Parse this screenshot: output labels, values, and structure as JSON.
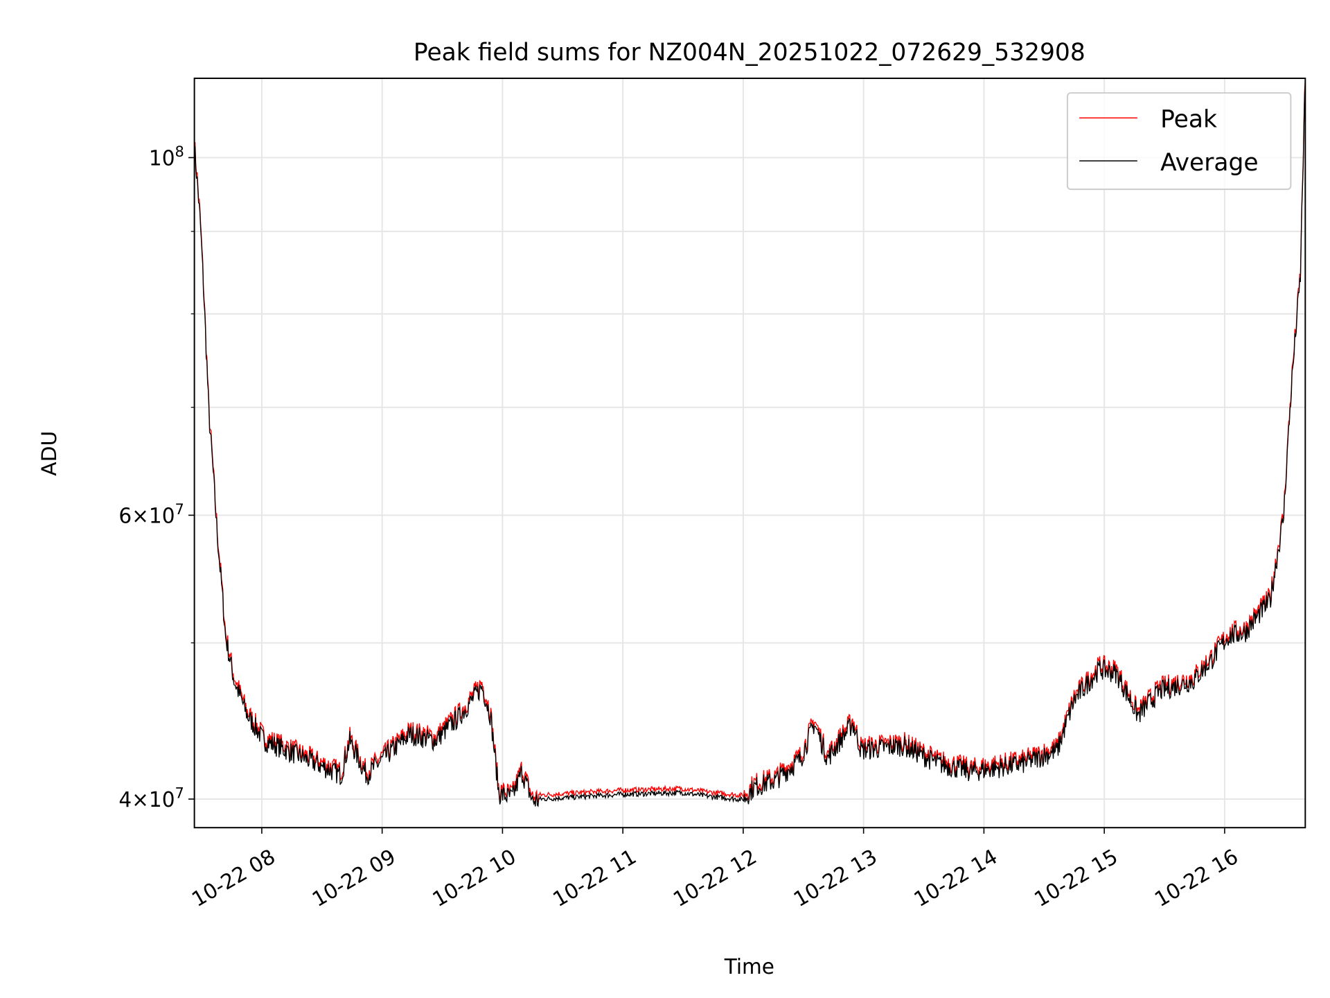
{
  "chart_data": {
    "type": "line",
    "title": "Peak field sums for NZ004N_20251022_072629_532908",
    "xlabel": "Time",
    "ylabel": "ADU",
    "yscale": "log",
    "xlim_hours": [
      7.44,
      16.67
    ],
    "ylim": [
      38400000,
      112000000
    ],
    "grid": true,
    "legend_position": "top-right",
    "x_ticks": [
      {
        "hour": 8,
        "label": "10-22 08"
      },
      {
        "hour": 9,
        "label": "10-22 09"
      },
      {
        "hour": 10,
        "label": "10-22 10"
      },
      {
        "hour": 11,
        "label": "10-22 11"
      },
      {
        "hour": 12,
        "label": "10-22 12"
      },
      {
        "hour": 13,
        "label": "10-22 13"
      },
      {
        "hour": 14,
        "label": "10-22 14"
      },
      {
        "hour": 15,
        "label": "10-22 15"
      },
      {
        "hour": 16,
        "label": "10-22 16"
      }
    ],
    "y_ticks": [
      {
        "value": 40000000,
        "mant": "4",
        "exp": "7"
      },
      {
        "value": 60000000,
        "mant": "6",
        "exp": "7"
      },
      {
        "value": 100000000,
        "mant": "",
        "exp": "8"
      }
    ],
    "y_minor_ticks": [
      50000000,
      70000000,
      80000000,
      90000000
    ],
    "series": [
      {
        "name": "Peak",
        "color": "#ff0000",
        "ratio_to_average": 1.006
      },
      {
        "name": "Average",
        "color": "#000000",
        "hours": [
          7.44,
          7.49,
          7.56,
          7.63,
          7.7,
          7.77,
          7.88,
          8.02,
          8.3,
          8.66,
          8.73,
          8.87,
          9.01,
          9.23,
          9.44,
          9.65,
          9.83,
          9.9,
          9.97,
          10.08,
          10.16,
          10.25,
          10.5,
          10.99,
          11.49,
          11.7,
          11.99,
          12.09,
          12.27,
          12.48,
          12.59,
          12.7,
          12.91,
          12.98,
          13.33,
          13.62,
          13.9,
          14.33,
          14.61,
          14.75,
          14.96,
          15.1,
          15.28,
          15.46,
          15.74,
          15.88,
          16.03,
          16.17,
          16.38,
          16.49,
          16.56,
          16.63,
          16.67
        ],
        "values_1e7": [
          10.19,
          9.12,
          6.96,
          5.85,
          5.05,
          4.75,
          4.52,
          4.36,
          4.27,
          4.15,
          4.36,
          4.15,
          4.25,
          4.4,
          4.36,
          4.52,
          4.71,
          4.52,
          4.04,
          4.02,
          4.17,
          4.0,
          4.01,
          4.03,
          4.04,
          4.02,
          4.0,
          4.08,
          4.12,
          4.25,
          4.47,
          4.25,
          4.47,
          4.3,
          4.33,
          4.22,
          4.17,
          4.22,
          4.3,
          4.62,
          4.83,
          4.8,
          4.52,
          4.68,
          4.75,
          4.88,
          5.06,
          5.09,
          5.33,
          6.0,
          7.31,
          8.47,
          11.2
        ]
      }
    ]
  }
}
